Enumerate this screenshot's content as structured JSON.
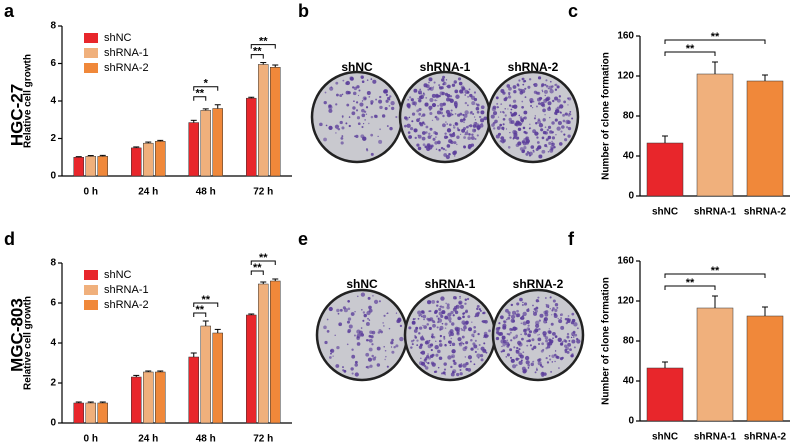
{
  "row_labels": [
    "HGC-27",
    "MGC-803"
  ],
  "images": [
    {
      "panel": "b",
      "labels": [
        "shNC",
        "shRNA-1",
        "shRNA-2"
      ]
    },
    {
      "panel": "e",
      "labels": [
        "shNC",
        "shRNA-1",
        "shRNA-2"
      ]
    }
  ],
  "chart_data": [
    {
      "type": "grouped_bar",
      "panel": "a",
      "y_label": "Relative cell growth",
      "categories": [
        "0 h",
        "24 h",
        "48 h",
        "72 h"
      ],
      "series": [
        {
          "name": "shNC",
          "color": "#e8262b",
          "values": [
            1.0,
            1.5,
            2.85,
            4.15
          ],
          "errors": [
            0.03,
            0.05,
            0.12,
            0.05
          ]
        },
        {
          "name": "shRNA-1",
          "color": "#f0b07c",
          "values": [
            1.05,
            1.75,
            3.5,
            5.95
          ],
          "errors": [
            0.04,
            0.06,
            0.08,
            0.1
          ]
        },
        {
          "name": "shRNA-2",
          "color": "#f0883a",
          "values": [
            1.05,
            1.85,
            3.6,
            5.8
          ],
          "errors": [
            0.05,
            0.05,
            0.2,
            0.12
          ]
        }
      ],
      "significance": [
        {
          "group": 2,
          "pair": [
            0,
            1
          ],
          "label": "**"
        },
        {
          "group": 2,
          "pair": [
            0,
            2
          ],
          "label": "*"
        },
        {
          "group": 3,
          "pair": [
            0,
            1
          ],
          "label": "**"
        },
        {
          "group": 3,
          "pair": [
            0,
            2
          ],
          "label": "**"
        }
      ],
      "ylim": [
        0,
        8
      ],
      "yticks": [
        0,
        2,
        4,
        6,
        8
      ]
    },
    {
      "type": "bar",
      "panel": "c",
      "y_label": "Number of clone formation",
      "categories": [
        "shNC",
        "shRNA-1",
        "shRNA-2"
      ],
      "colors": [
        "#e8262b",
        "#f0b07c",
        "#f0883a"
      ],
      "values": [
        53,
        122,
        115
      ],
      "errors": [
        7,
        12,
        6
      ],
      "significance": [
        {
          "pair": [
            0,
            1
          ],
          "label": "**"
        },
        {
          "pair": [
            0,
            2
          ],
          "label": "**"
        }
      ],
      "ylim": [
        0,
        160
      ],
      "yticks": [
        0,
        40,
        80,
        120,
        160
      ]
    },
    {
      "type": "grouped_bar",
      "panel": "d",
      "y_label": "Relative cell growth",
      "categories": [
        "0 h",
        "24 h",
        "48 h",
        "72 h"
      ],
      "series": [
        {
          "name": "shNC",
          "color": "#e8262b",
          "values": [
            1.0,
            2.3,
            3.3,
            5.4
          ],
          "errors": [
            0.05,
            0.08,
            0.2,
            0.05
          ]
        },
        {
          "name": "shRNA-1",
          "color": "#f0b07c",
          "values": [
            1.0,
            2.55,
            4.85,
            6.95
          ],
          "errors": [
            0.05,
            0.05,
            0.25,
            0.1
          ]
        },
        {
          "name": "shRNA-2",
          "color": "#f0883a",
          "values": [
            1.0,
            2.55,
            4.5,
            7.1
          ],
          "errors": [
            0.05,
            0.05,
            0.18,
            0.1
          ]
        }
      ],
      "significance": [
        {
          "group": 2,
          "pair": [
            0,
            1
          ],
          "label": "**"
        },
        {
          "group": 2,
          "pair": [
            0,
            2
          ],
          "label": "**"
        },
        {
          "group": 3,
          "pair": [
            0,
            1
          ],
          "label": "**"
        },
        {
          "group": 3,
          "pair": [
            0,
            2
          ],
          "label": "**"
        }
      ],
      "ylim": [
        0,
        8
      ],
      "yticks": [
        0,
        2,
        4,
        6,
        8
      ]
    },
    {
      "type": "bar",
      "panel": "f",
      "y_label": "Number of clone formation",
      "categories": [
        "shNC",
        "shRNA-1",
        "shRNA-2"
      ],
      "colors": [
        "#e8262b",
        "#f0b07c",
        "#f0883a"
      ],
      "values": [
        53,
        113,
        105
      ],
      "errors": [
        6,
        12,
        9
      ],
      "significance": [
        {
          "pair": [
            0,
            1
          ],
          "label": "**"
        },
        {
          "pair": [
            0,
            2
          ],
          "label": "**"
        }
      ],
      "ylim": [
        0,
        160
      ],
      "yticks": [
        0,
        40,
        80,
        120,
        160
      ]
    }
  ]
}
